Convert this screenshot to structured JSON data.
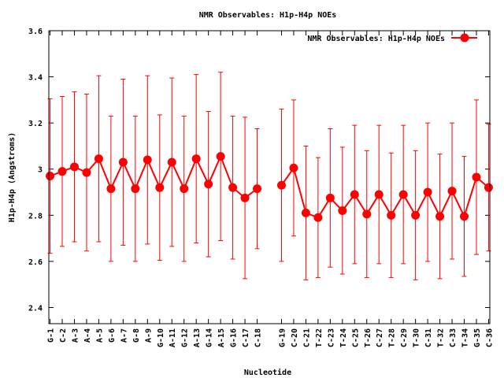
{
  "chart_data": {
    "type": "line",
    "title": "NMR Observables: H1p-H4p NOEs",
    "xlabel": "Nucleotide",
    "ylabel": "H1p-H4p (Angstroms)",
    "ylim": [
      2.33,
      3.6
    ],
    "yticks": [
      "2.4",
      "2.6",
      "2.8",
      "3",
      "3.2",
      "3.4",
      "3.6"
    ],
    "legend": "top-right",
    "color": "#ff0000",
    "series": [
      {
        "name": "NMR Observables: H1p-H4p NOEs",
        "categories": [
          "G-1",
          "C-2",
          "A-3",
          "A-4",
          "A-5",
          "G-6",
          "A-7",
          "G-8",
          "A-9",
          "G-10",
          "A-11",
          "G-12",
          "A-13",
          "G-14",
          "A-15",
          "G-16",
          "C-17",
          "C-18",
          "G-19",
          "C-20",
          "C-21",
          "T-22",
          "C-23",
          "T-24",
          "C-25",
          "T-26",
          "C-27",
          "T-28",
          "C-29",
          "T-30",
          "C-31",
          "T-32",
          "C-33",
          "T-34",
          "G-35",
          "C-36"
        ],
        "x": [
          1,
          2,
          3,
          4,
          5,
          6,
          7,
          8,
          9,
          10,
          11,
          12,
          13,
          14,
          15,
          16,
          17,
          18,
          20,
          21,
          22,
          23,
          24,
          25,
          26,
          27,
          28,
          29,
          30,
          31,
          32,
          33,
          34,
          35,
          36,
          37
        ],
        "values": [
          2.97,
          2.99,
          3.01,
          2.985,
          3.045,
          2.915,
          3.03,
          2.915,
          3.04,
          2.92,
          3.03,
          2.915,
          3.045,
          2.935,
          3.055,
          2.92,
          2.875,
          2.915,
          2.93,
          3.005,
          2.81,
          2.79,
          2.875,
          2.82,
          2.89,
          2.805,
          2.89,
          2.8,
          2.89,
          2.8,
          2.9,
          2.795,
          2.905,
          2.795,
          2.965,
          2.92
        ],
        "errors": [
          0.335,
          0.325,
          0.325,
          0.34,
          0.36,
          0.315,
          0.36,
          0.315,
          0.365,
          0.315,
          0.365,
          0.315,
          0.365,
          0.315,
          0.365,
          0.31,
          0.35,
          0.26,
          0.33,
          0.295,
          0.29,
          0.26,
          0.3,
          0.275,
          0.3,
          0.275,
          0.3,
          0.27,
          0.3,
          0.28,
          0.3,
          0.27,
          0.295,
          0.26,
          0.335,
          0.275
        ]
      }
    ]
  }
}
